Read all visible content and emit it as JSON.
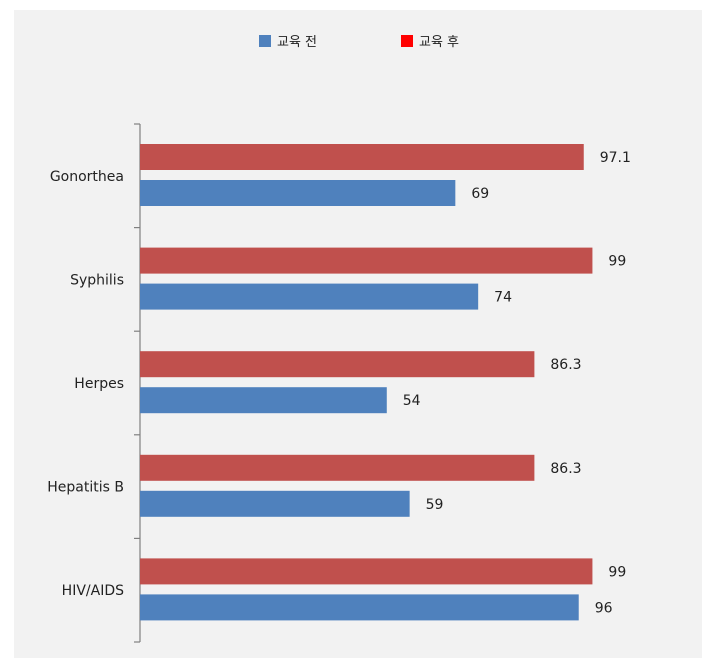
{
  "chart_data": {
    "type": "bar",
    "orientation": "horizontal",
    "categories": [
      "Gonorthea",
      "Syphilis",
      "Herpes",
      "Hepatitis B",
      "HIV/AIDS"
    ],
    "series": [
      {
        "name": "교육 전",
        "values": [
          69,
          74,
          54,
          59,
          96
        ],
        "color": "#4f81bd"
      },
      {
        "name": "교육 후",
        "values": [
          97.1,
          99,
          86.3,
          86.3,
          99
        ],
        "color": "#c0504d"
      }
    ],
    "legend_colors": [
      "#4f81bd",
      "#ff0000"
    ],
    "value_labels": [
      [
        "69",
        "74",
        "54",
        "59",
        "96"
      ],
      [
        "97.1",
        "99",
        "86.3",
        "86.3",
        "99"
      ]
    ],
    "title": "",
    "xlabel": "",
    "ylabel": "",
    "xlim": [
      0,
      100
    ],
    "grid": false,
    "legend_position": "top-center"
  }
}
